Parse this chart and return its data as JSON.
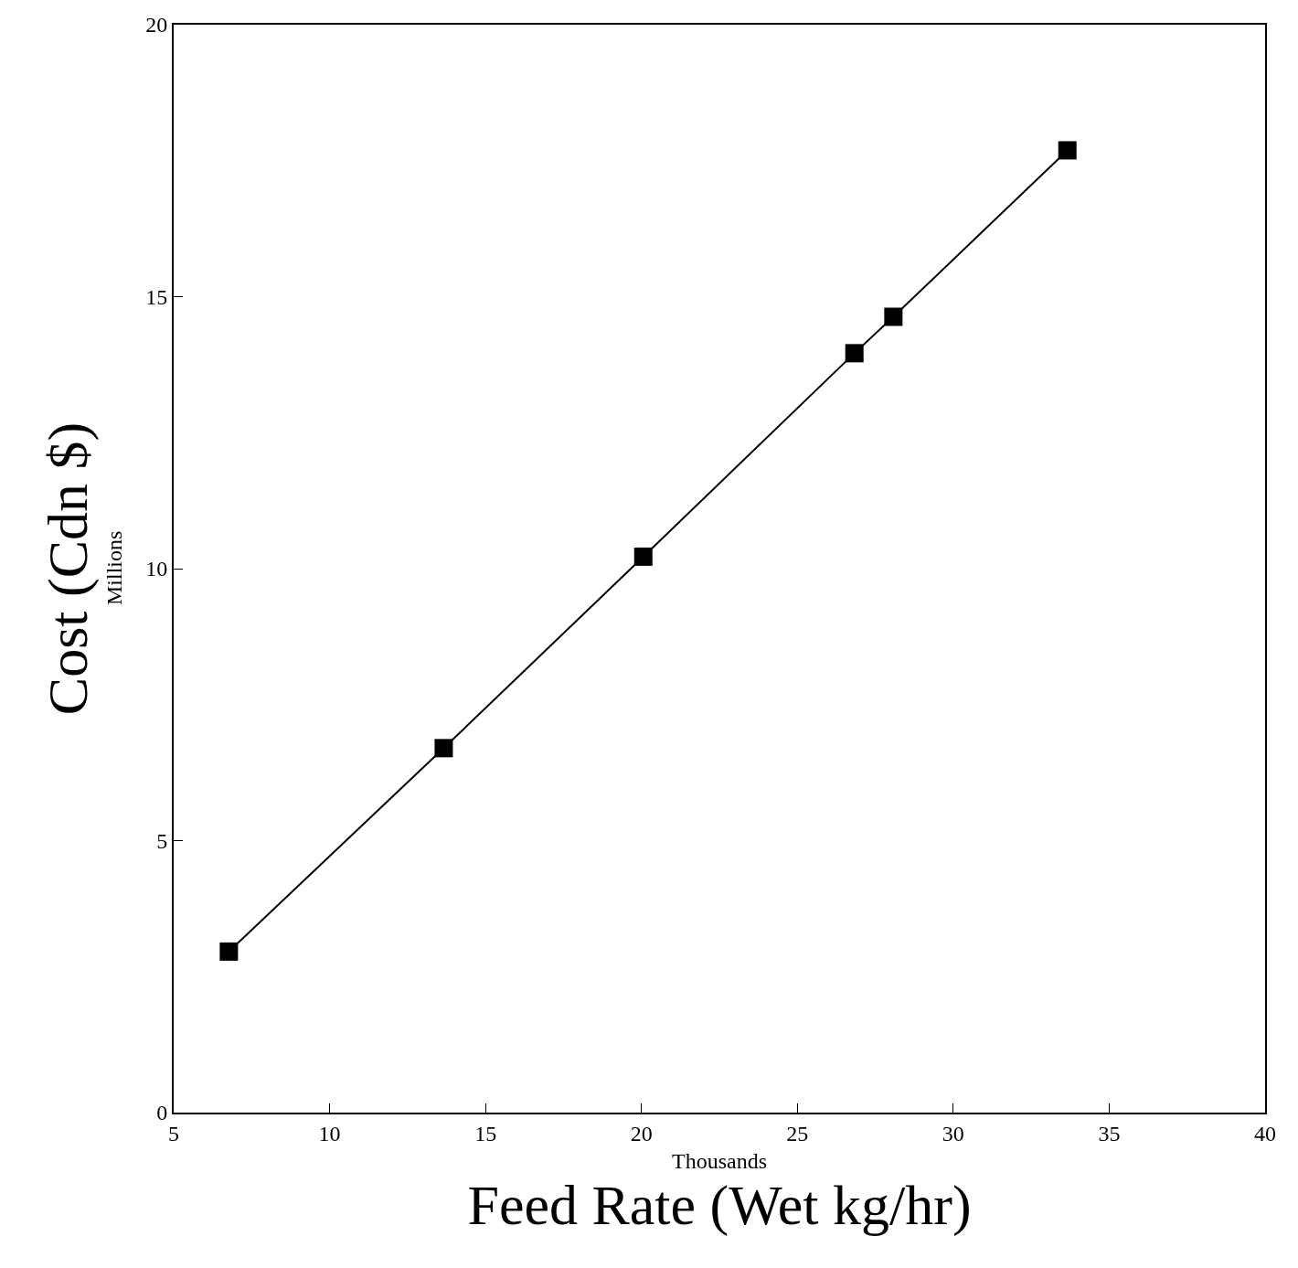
{
  "chart_data": {
    "type": "line",
    "xlabel": "Feed Rate (Wet kg/hr)",
    "ylabel": "Cost (Cdn $)",
    "annotations": [
      "Millions",
      "Thousands"
    ],
    "x": [
      6.77,
      13.66,
      20.06,
      26.83,
      28.08,
      33.66
    ],
    "series": [
      {
        "color": "#000000",
        "values": [
          2.96,
          6.7,
          10.22,
          13.96,
          14.63,
          17.69
        ]
      }
    ],
    "xlim": [
      5,
      40
    ],
    "xticks": [
      5,
      10,
      15,
      20,
      25,
      30,
      35,
      40
    ],
    "ylim": [
      0,
      20
    ],
    "yticks": [
      0,
      5,
      10,
      15,
      20
    ],
    "grid": false,
    "marker": "square",
    "line_style": "solid"
  }
}
